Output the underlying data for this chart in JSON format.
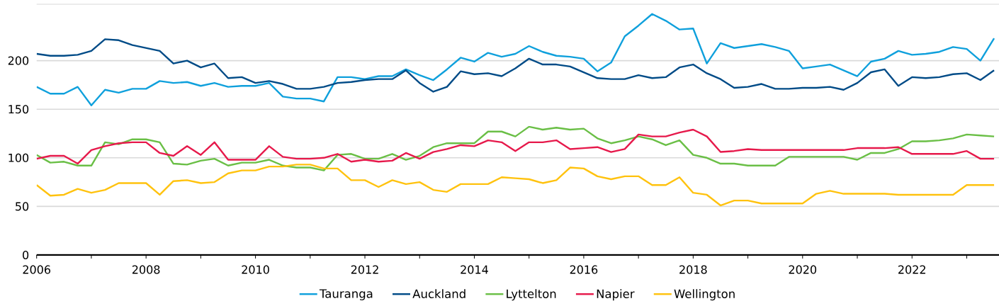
{
  "chart_data": {
    "type": "line",
    "x": [
      2006,
      2006.25,
      2006.5,
      2006.75,
      2007,
      2007.25,
      2007.5,
      2007.75,
      2008,
      2008.25,
      2008.5,
      2008.75,
      2009,
      2009.25,
      2009.5,
      2009.75,
      2010,
      2010.25,
      2010.5,
      2010.75,
      2011,
      2011.25,
      2011.5,
      2011.75,
      2012,
      2012.25,
      2012.5,
      2012.75,
      2013,
      2013.25,
      2013.5,
      2013.75,
      2014,
      2014.25,
      2014.5,
      2014.75,
      2015,
      2015.25,
      2015.5,
      2015.75,
      2016,
      2016.25,
      2016.5,
      2016.75,
      2017,
      2017.25,
      2017.5,
      2017.75,
      2018,
      2018.25,
      2018.5,
      2018.75,
      2019,
      2019.25,
      2019.5,
      2019.75,
      2020,
      2020.25,
      2020.5,
      2020.75,
      2021,
      2021.25,
      2021.5,
      2021.75,
      2022,
      2022.25,
      2022.5,
      2022.75,
      2023,
      2023.25,
      2023.5
    ],
    "series": [
      {
        "name": "Tauranga",
        "color": "#0fa0dc",
        "values": [
          173,
          166,
          166,
          173,
          154,
          170,
          167,
          171,
          171,
          179,
          177,
          178,
          174,
          177,
          173,
          174,
          174,
          177,
          163,
          161,
          161,
          158,
          183,
          183,
          181,
          184,
          184,
          191,
          185,
          180,
          191,
          203,
          199,
          208,
          204,
          207,
          215,
          209,
          205,
          204,
          202,
          189,
          198,
          225,
          236,
          248,
          241,
          232,
          233,
          197,
          218,
          213,
          215,
          217,
          214,
          210,
          192,
          194,
          196,
          190,
          184,
          199,
          202,
          210,
          206,
          207,
          209,
          214,
          212,
          200,
          223
        ]
      },
      {
        "name": "Auckland",
        "color": "#004b87",
        "values": [
          207,
          205,
          205,
          206,
          210,
          222,
          221,
          216,
          213,
          210,
          197,
          200,
          193,
          197,
          182,
          183,
          177,
          179,
          176,
          171,
          171,
          173,
          177,
          178,
          180,
          181,
          181,
          190,
          177,
          168,
          173,
          189,
          186,
          187,
          184,
          192,
          202,
          196,
          196,
          194,
          188,
          182,
          181,
          181,
          185,
          182,
          183,
          193,
          196,
          187,
          181,
          172,
          173,
          176,
          171,
          171,
          172,
          172,
          173,
          170,
          177,
          188,
          191,
          174,
          183,
          182,
          183,
          186,
          187,
          180,
          190
        ]
      },
      {
        "name": "Lyttelton",
        "color": "#6abf46",
        "values": [
          103,
          95,
          96,
          92,
          92,
          116,
          114,
          119,
          119,
          116,
          94,
          93,
          97,
          99,
          92,
          95,
          95,
          98,
          92,
          90,
          90,
          87,
          103,
          104,
          99,
          99,
          104,
          98,
          102,
          111,
          115,
          115,
          115,
          127,
          127,
          122,
          132,
          129,
          131,
          129,
          130,
          120,
          115,
          118,
          122,
          119,
          113,
          118,
          103,
          100,
          94,
          94,
          92,
          92,
          92,
          101,
          101,
          101,
          101,
          101,
          98,
          105,
          105,
          109,
          117,
          117,
          118,
          120,
          124,
          123,
          122
        ]
      },
      {
        "name": "Napier",
        "color": "#e6194b",
        "values": [
          99,
          102,
          102,
          94,
          108,
          112,
          115,
          116,
          116,
          105,
          102,
          112,
          103,
          116,
          98,
          98,
          98,
          112,
          101,
          99,
          99,
          100,
          104,
          96,
          98,
          96,
          97,
          105,
          99,
          106,
          109,
          113,
          112,
          118,
          116,
          107,
          116,
          116,
          118,
          109,
          110,
          111,
          106,
          109,
          124,
          122,
          122,
          126,
          129,
          122,
          106,
          107,
          109,
          108,
          108,
          108,
          108,
          108,
          108,
          108,
          110,
          110,
          110,
          111,
          104,
          104,
          104,
          104,
          107,
          99,
          99
        ]
      },
      {
        "name": "Wellington",
        "color": "#ffc20e",
        "values": [
          72,
          61,
          62,
          68,
          64,
          67,
          74,
          74,
          74,
          62,
          76,
          77,
          74,
          75,
          84,
          87,
          87,
          91,
          91,
          93,
          93,
          89,
          89,
          77,
          77,
          70,
          77,
          73,
          75,
          67,
          65,
          73,
          73,
          73,
          80,
          79,
          78,
          74,
          77,
          90,
          89,
          81,
          78,
          81,
          81,
          72,
          72,
          80,
          64,
          62,
          51,
          56,
          56,
          53,
          53,
          53,
          53,
          63,
          66,
          63,
          63,
          63,
          63,
          62,
          62,
          62,
          62,
          62,
          72,
          72,
          72
        ]
      }
    ],
    "xlim": [
      2006,
      2023.59
    ],
    "ylim": [
      0,
      258
    ],
    "xticks": [
      2006,
      {
        "value": 2007,
        "label": null
      },
      2008,
      {
        "value": 2009,
        "label": null
      },
      2010,
      {
        "value": 2011,
        "label": null
      },
      2012,
      {
        "value": 2013,
        "label": null
      },
      2014,
      {
        "value": 2015,
        "label": null
      },
      2016,
      {
        "value": 2017,
        "label": null
      },
      2018,
      {
        "value": 2019,
        "label": null
      },
      2020,
      {
        "value": 2021,
        "label": null
      },
      2022,
      {
        "value": 2023,
        "label": null
      }
    ],
    "yticks": [
      0,
      50,
      100,
      150,
      200
    ],
    "grid": "y",
    "legend": "bottom",
    "line_style": "solid"
  }
}
